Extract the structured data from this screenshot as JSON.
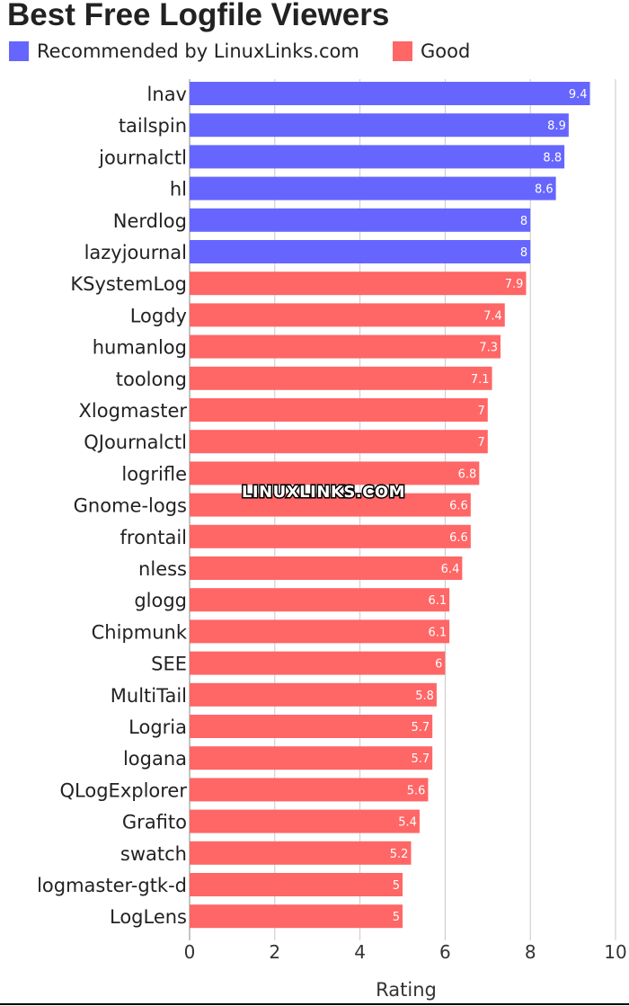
{
  "chart_data": {
    "type": "bar",
    "orientation": "horizontal",
    "title": "Best Free Logfile Viewers",
    "xlabel": "Rating",
    "ylabel": "",
    "xlim": [
      0,
      10
    ],
    "xticks": [
      0,
      2,
      4,
      6,
      8,
      10
    ],
    "grid": "vertical",
    "legend_position": "top-left",
    "legend": [
      {
        "name": "Recommended by LinuxLinks.com",
        "color": "#6666ff"
      },
      {
        "name": "Good",
        "color": "#ff6666"
      }
    ],
    "categories": [
      "lnav",
      "tailspin",
      "journalctl",
      "hl",
      "Nerdlog",
      "lazyjournal",
      "KSystemLog",
      "Logdy",
      "humanlog",
      "toolong",
      "Xlogmaster",
      "QJournalctl",
      "logrifle",
      "Gnome-logs",
      "frontail",
      "nless",
      "glogg",
      "Chipmunk",
      "SEE",
      "MultiTail",
      "Logria",
      "logana",
      "QLogExplorer",
      "Grafito",
      "swatch",
      "logmaster-gtk-d",
      "LogLens"
    ],
    "values": [
      9.4,
      8.9,
      8.8,
      8.6,
      8,
      8,
      7.9,
      7.4,
      7.3,
      7.1,
      7,
      7,
      6.8,
      6.6,
      6.6,
      6.4,
      6.1,
      6.1,
      6,
      5.8,
      5.7,
      5.7,
      5.6,
      5.4,
      5.2,
      5,
      5
    ],
    "groups": [
      "Recommended by LinuxLinks.com",
      "Recommended by LinuxLinks.com",
      "Recommended by LinuxLinks.com",
      "Recommended by LinuxLinks.com",
      "Recommended by LinuxLinks.com",
      "Recommended by LinuxLinks.com",
      "Good",
      "Good",
      "Good",
      "Good",
      "Good",
      "Good",
      "Good",
      "Good",
      "Good",
      "Good",
      "Good",
      "Good",
      "Good",
      "Good",
      "Good",
      "Good",
      "Good",
      "Good",
      "Good",
      "Good",
      "Good"
    ],
    "value_labels": [
      "9.4",
      "8.9",
      "8.8",
      "8.6",
      "8",
      "8",
      "7.9",
      "7.4",
      "7.3",
      "7.1",
      "7",
      "7",
      "6.8",
      "6.6",
      "6.6",
      "6.4",
      "6.1",
      "6.1",
      "6",
      "5.8",
      "5.7",
      "5.7",
      "5.6",
      "5.4",
      "5.2",
      "5",
      "5"
    ]
  },
  "watermark": "LINUXLINKS.COM"
}
